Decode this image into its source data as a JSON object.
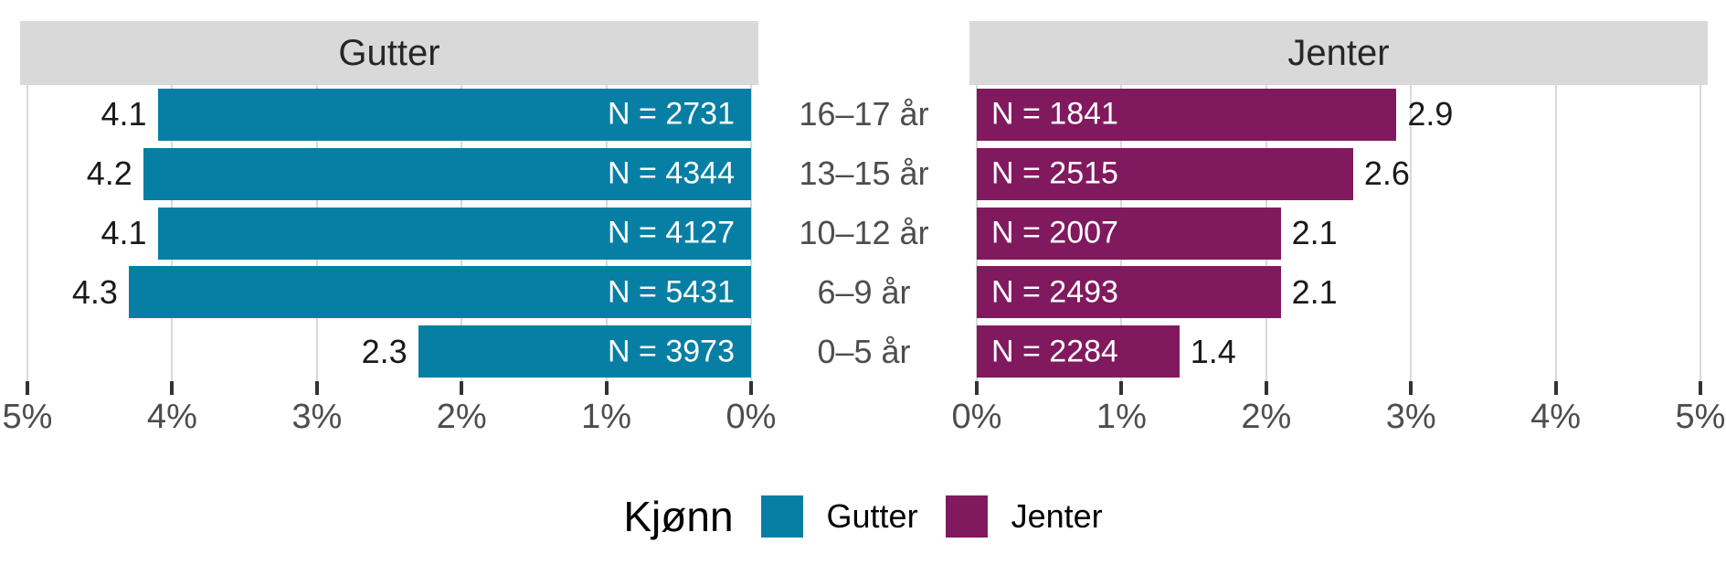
{
  "chart_data": {
    "type": "bar",
    "variant": "population-pyramid",
    "categories": [
      "16–17 år",
      "13–15 år",
      "10–12 år",
      "6–9 år",
      "0–5 år"
    ],
    "panels": [
      {
        "title": "Gutter",
        "side": "left",
        "color": "#077fa4",
        "values": [
          4.1,
          4.2,
          4.1,
          4.3,
          2.3
        ],
        "value_labels": [
          "4.1",
          "4.2",
          "4.1",
          "4.3",
          "2.3"
        ],
        "n_values": [
          2731,
          4344,
          4127,
          5431,
          3973
        ],
        "n_labels": [
          "N = 2731",
          "N = 4344",
          "N = 4127",
          "N = 5431",
          "N = 3973"
        ],
        "axis_tick_values": [
          5,
          4,
          3,
          2,
          1,
          0
        ],
        "axis_tick_labels": [
          "5%",
          "4%",
          "3%",
          "2%",
          "1%",
          "0%"
        ]
      },
      {
        "title": "Jenter",
        "side": "right",
        "color": "#81195f",
        "values": [
          2.9,
          2.6,
          2.1,
          2.1,
          1.4
        ],
        "value_labels": [
          "2.9",
          "2.6",
          "2.1",
          "2.1",
          "1.4"
        ],
        "n_values": [
          1841,
          2515,
          2007,
          2493,
          2284
        ],
        "n_labels": [
          "N = 1841",
          "N = 2515",
          "N = 2007",
          "N = 2493",
          "N = 2284"
        ],
        "axis_tick_values": [
          0,
          1,
          2,
          3,
          4,
          5
        ],
        "axis_tick_labels": [
          "0%",
          "1%",
          "2%",
          "3%",
          "4%",
          "5%"
        ]
      }
    ],
    "xlim": [
      0,
      5
    ],
    "grid": true,
    "legend": {
      "title": "Kjønn",
      "position": "bottom",
      "entries": [
        {
          "label": "Gutter",
          "color": "#077fa4"
        },
        {
          "label": "Jenter",
          "color": "#81195f"
        }
      ]
    }
  },
  "style": {
    "strip_bg": "#d9d9d9",
    "grid_color": "#d9d9d9",
    "tick_color": "#333333",
    "axis_text_color": "#4d4d4d",
    "category_text_color": "#4d4d4d",
    "bar_label_color": "#ffffff",
    "value_label_color": "#1a1a1a"
  }
}
